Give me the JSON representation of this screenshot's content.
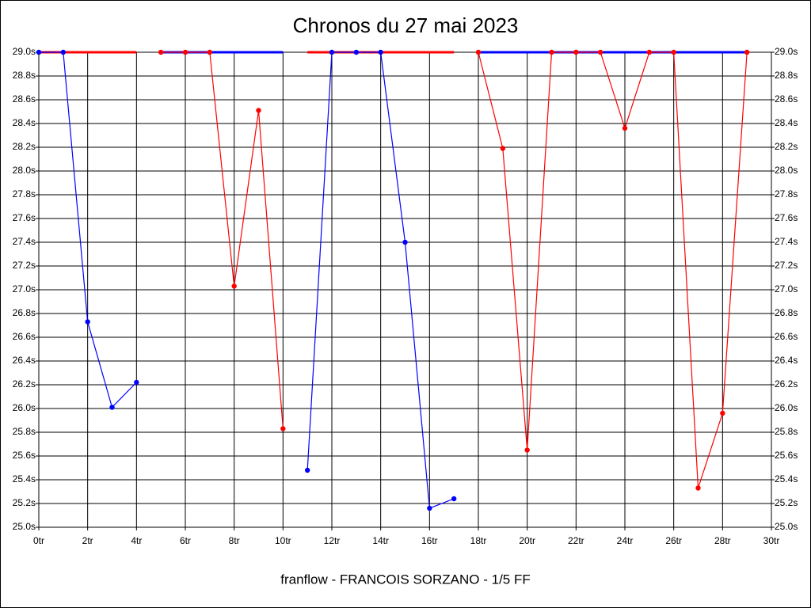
{
  "chart_data": {
    "type": "line",
    "title": "Chronos du 27 mai 2023",
    "x_label": "franflow - FRANCOIS SORZANO - 1/5 FF",
    "x": [
      0,
      1,
      2,
      3,
      4,
      5,
      6,
      7,
      8,
      9,
      10,
      11,
      12,
      13,
      14,
      15,
      16,
      17,
      18,
      19,
      20,
      21,
      22,
      23,
      24,
      25,
      26,
      27,
      28,
      29
    ],
    "series": [
      {
        "color": "#0000ff",
        "values": [
          29.0,
          29.0,
          26.73,
          26.01,
          26.22,
          null,
          null,
          null,
          null,
          null,
          null,
          25.48,
          29.0,
          29.0,
          29.0,
          27.4,
          25.16,
          25.24,
          null,
          null,
          null,
          null,
          null,
          null,
          null,
          null,
          null,
          null,
          null,
          null
        ]
      },
      {
        "color": "#ff0000",
        "values": [
          null,
          null,
          null,
          null,
          null,
          29.0,
          29.0,
          29.0,
          27.03,
          28.51,
          25.83,
          null,
          null,
          null,
          null,
          null,
          null,
          null,
          29.0,
          28.19,
          25.65,
          29.0,
          29.0,
          29.0,
          28.36,
          29.0,
          29.0,
          25.33,
          25.96,
          29.0
        ]
      }
    ],
    "xlim": [
      0,
      30
    ],
    "xticks": [
      {
        "value": 0,
        "label": "0tr"
      },
      {
        "value": 2,
        "label": "2tr"
      },
      {
        "value": 4,
        "label": "4tr"
      },
      {
        "value": 6,
        "label": "6tr"
      },
      {
        "value": 8,
        "label": "8tr"
      },
      {
        "value": 10,
        "label": "10tr"
      },
      {
        "value": 12,
        "label": "12tr"
      },
      {
        "value": 14,
        "label": "14tr"
      },
      {
        "value": 16,
        "label": "16tr"
      },
      {
        "value": 18,
        "label": "18tr"
      },
      {
        "value": 20,
        "label": "20tr"
      },
      {
        "value": 22,
        "label": "22tr"
      },
      {
        "value": 24,
        "label": "24tr"
      },
      {
        "value": 26,
        "label": "26tr"
      },
      {
        "value": 28,
        "label": "28tr"
      },
      {
        "value": 30,
        "label": "30tr"
      }
    ],
    "ylim": [
      25.0,
      29.0
    ],
    "yticks": [
      {
        "value": 25.0,
        "label": "25.0s"
      },
      {
        "value": 25.2,
        "label": "25.2s"
      },
      {
        "value": 25.4,
        "label": "25.4s"
      },
      {
        "value": 25.6,
        "label": "25.6s"
      },
      {
        "value": 25.8,
        "label": "25.8s"
      },
      {
        "value": 26.0,
        "label": "26.0s"
      },
      {
        "value": 26.2,
        "label": "26.2s"
      },
      {
        "value": 26.4,
        "label": "26.4s"
      },
      {
        "value": 26.6,
        "label": "26.6s"
      },
      {
        "value": 26.8,
        "label": "26.8s"
      },
      {
        "value": 27.0,
        "label": "27.0s"
      },
      {
        "value": 27.2,
        "label": "27.2s"
      },
      {
        "value": 27.4,
        "label": "27.4s"
      },
      {
        "value": 27.6,
        "label": "27.6s"
      },
      {
        "value": 27.8,
        "label": "27.8s"
      },
      {
        "value": 28.0,
        "label": "28.0s"
      },
      {
        "value": 28.2,
        "label": "28.2s"
      },
      {
        "value": 28.4,
        "label": "28.4s"
      },
      {
        "value": 28.6,
        "label": "28.6s"
      },
      {
        "value": 28.8,
        "label": "28.8s"
      },
      {
        "value": 29.0,
        "label": "29.0s"
      }
    ],
    "grid": true
  }
}
